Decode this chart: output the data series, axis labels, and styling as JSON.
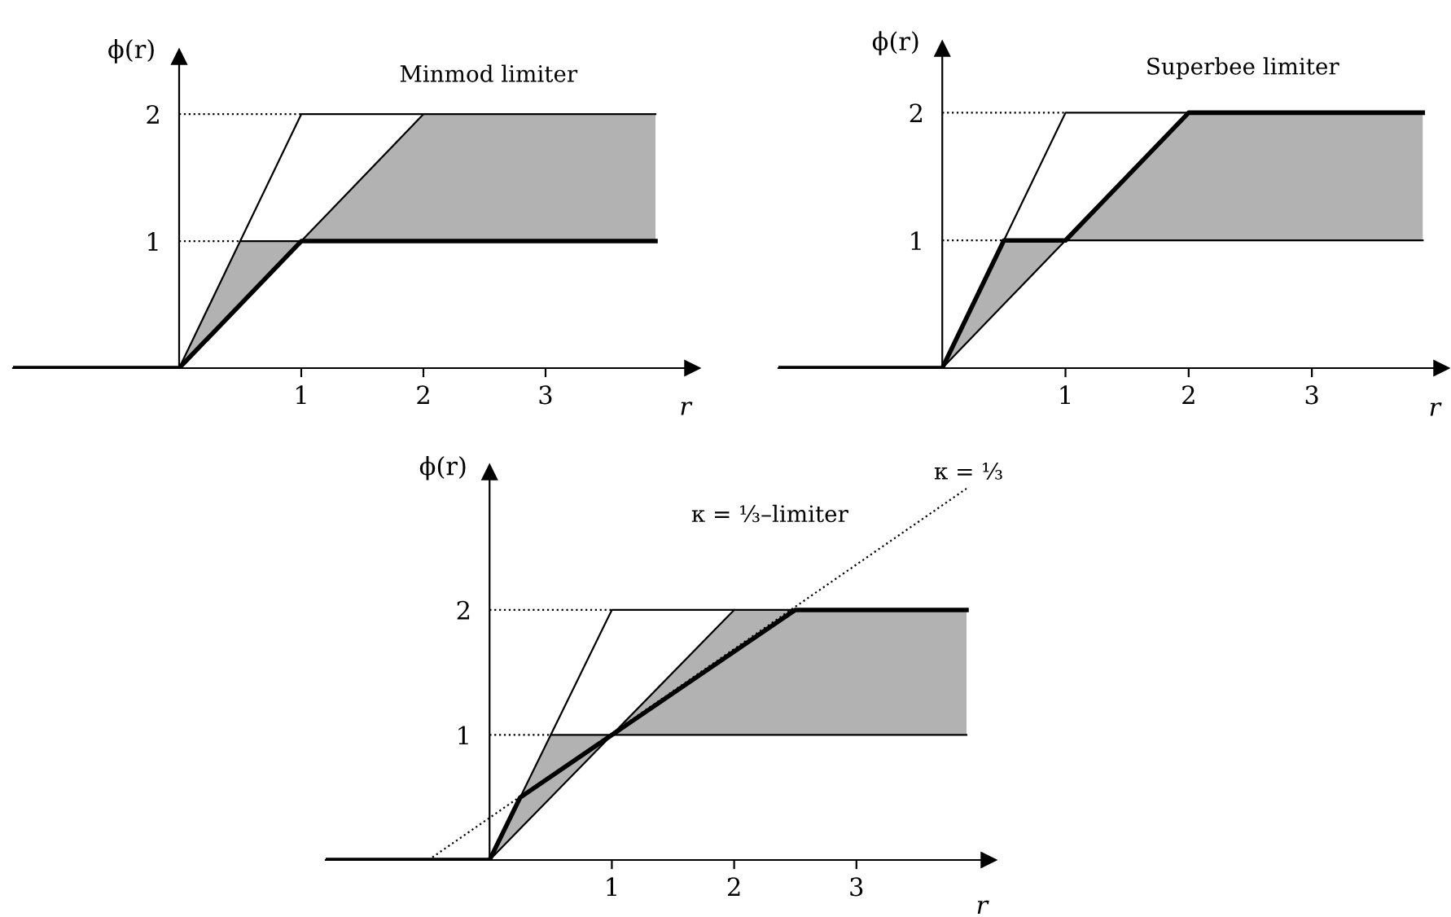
{
  "chart_data": [
    {
      "type": "line",
      "title": "Minmod limiter",
      "xlabel": "r",
      "ylabel": "ϕ(r)",
      "xlim": [
        -1.36,
        4.2
      ],
      "ylim": [
        0,
        2.45
      ],
      "xticks": [
        1,
        2,
        3
      ],
      "yticks": [
        1,
        2
      ],
      "grid": false,
      "legend": false,
      "series": [
        {
          "line_style": "solid",
          "color": "#000000",
          "x": [
            0,
            0.5,
            1,
            2,
            3.9
          ],
          "values": [
            0,
            1,
            1,
            2,
            2
          ],
          "lower": [
            0,
            0.5,
            1,
            1,
            1
          ],
          "upper": [
            0,
            1,
            1,
            2,
            2
          ]
        },
        {
          "line_style": "dotted",
          "color": "#000000",
          "x": [
            0,
            1
          ],
          "values": [
            2,
            2
          ]
        },
        {
          "line_style": "dotted",
          "color": "#000000",
          "x": [
            0,
            0.5
          ],
          "values": [
            1,
            1
          ]
        },
        {
          "line_style": "solid",
          "color": "#000000",
          "x": [
            0.5,
            1,
            2
          ],
          "values": [
            1,
            2,
            2
          ]
        },
        {
          "line_style": "solid",
          "color": "#000000",
          "x": [
            -1.36,
            0,
            1,
            3.9
          ],
          "values": [
            0,
            0,
            1,
            1
          ]
        }
      ]
    },
    {
      "type": "line",
      "title": "Superbee limiter",
      "xlabel": "r",
      "ylabel": "ϕ(r)",
      "xlim": [
        -1.33,
        4.05
      ],
      "ylim": [
        0,
        2.5
      ],
      "xticks": [
        1,
        2,
        3
      ],
      "yticks": [
        1,
        2
      ],
      "grid": false,
      "legend": false,
      "series": [
        {
          "line_style": "solid",
          "color": "#000000",
          "x": [
            0,
            0.5,
            1,
            2,
            3.9
          ],
          "values": [
            0,
            0.5,
            1,
            1,
            1
          ],
          "lower": [
            0,
            0.5,
            1,
            1,
            1
          ],
          "upper": [
            0,
            1,
            1,
            2,
            2
          ]
        },
        {
          "line_style": "dotted",
          "color": "#000000",
          "x": [
            0,
            1
          ],
          "values": [
            2,
            2
          ]
        },
        {
          "line_style": "dotted",
          "color": "#000000",
          "x": [
            0,
            0.5
          ],
          "values": [
            1,
            1
          ]
        },
        {
          "line_style": "solid",
          "color": "#000000",
          "x": [
            0.5,
            1,
            2
          ],
          "values": [
            1,
            2,
            2
          ]
        },
        {
          "line_style": "solid",
          "color": "#000000",
          "x": [
            -1.33,
            0,
            0.5,
            1,
            2,
            3.9
          ],
          "values": [
            0,
            0,
            1,
            1,
            2,
            2
          ]
        }
      ]
    },
    {
      "type": "line",
      "xlabel": "r",
      "ylabel": "ϕ(r)",
      "xlim": [
        -1.34,
        4.08
      ],
      "ylim": [
        0,
        3.1
      ],
      "xticks": [
        1,
        2,
        3
      ],
      "yticks": [
        1,
        2
      ],
      "grid": false,
      "legend": false,
      "annotations": [
        "κ = ⅓–limiter",
        "κ = ⅓"
      ],
      "series": [
        {
          "line_style": "solid",
          "color": "#000000",
          "x": [
            0,
            0.5,
            1,
            2,
            3.9
          ],
          "values": [
            0,
            0.5,
            1,
            1,
            1
          ],
          "lower": [
            0,
            0.5,
            1,
            1,
            1
          ],
          "upper": [
            0,
            1,
            1,
            2,
            2
          ]
        },
        {
          "line_style": "solid",
          "color": "#000000",
          "x": [
            0,
            0.5,
            1,
            2,
            3.9
          ],
          "values": [
            0,
            1,
            1,
            2,
            2
          ]
        },
        {
          "line_style": "dotted",
          "color": "#000000",
          "x": [
            0,
            1
          ],
          "values": [
            2,
            2
          ]
        },
        {
          "line_style": "dotted",
          "color": "#000000",
          "x": [
            0,
            0.5
          ],
          "values": [
            1,
            1
          ]
        },
        {
          "line_style": "dotted",
          "color": "#000000",
          "x": [
            -0.5,
            3.9
          ],
          "values": [
            0,
            2.97
          ]
        },
        {
          "line_style": "solid",
          "color": "#000000",
          "x": [
            0.5,
            1,
            2
          ],
          "values": [
            1,
            2,
            2
          ]
        },
        {
          "line_style": "solid",
          "color": "#000000",
          "x": [
            -1.34,
            0,
            0.25,
            2.5,
            3.9
          ],
          "values": [
            0,
            0,
            0.5,
            2,
            2
          ]
        }
      ]
    }
  ]
}
